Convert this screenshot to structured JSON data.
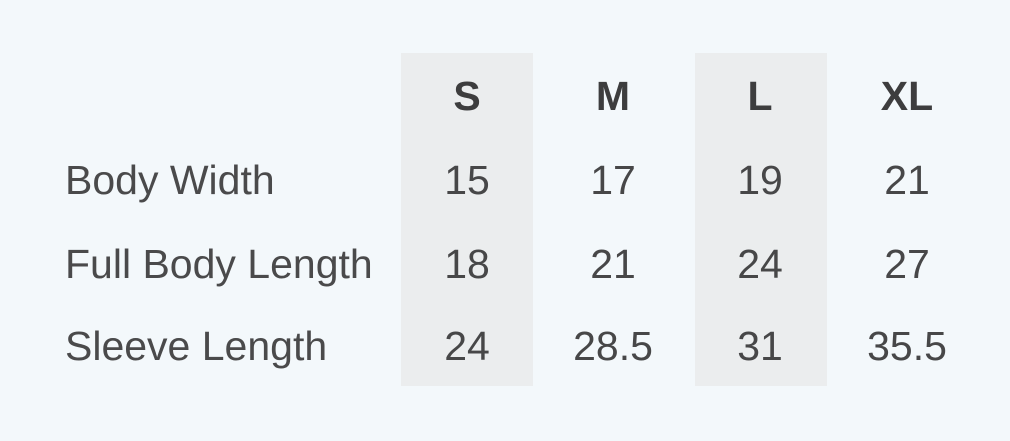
{
  "size_chart": {
    "columns": [
      "S",
      "M",
      "L",
      "XL"
    ],
    "highlighted_columns": [
      "S",
      "L"
    ],
    "rows": [
      {
        "label": "Body Width",
        "values": [
          "15",
          "17",
          "19",
          "21"
        ]
      },
      {
        "label": "Full Body Length",
        "values": [
          "18",
          "21",
          "24",
          "27"
        ]
      },
      {
        "label": "Sleeve Length",
        "values": [
          "24",
          "28.5",
          "31",
          "35.5"
        ]
      }
    ]
  },
  "colors": {
    "background": "#f3f8fb",
    "column_highlight": "#ebedee",
    "header_text": "#3d3d3e",
    "body_text": "#4a4a4b"
  }
}
